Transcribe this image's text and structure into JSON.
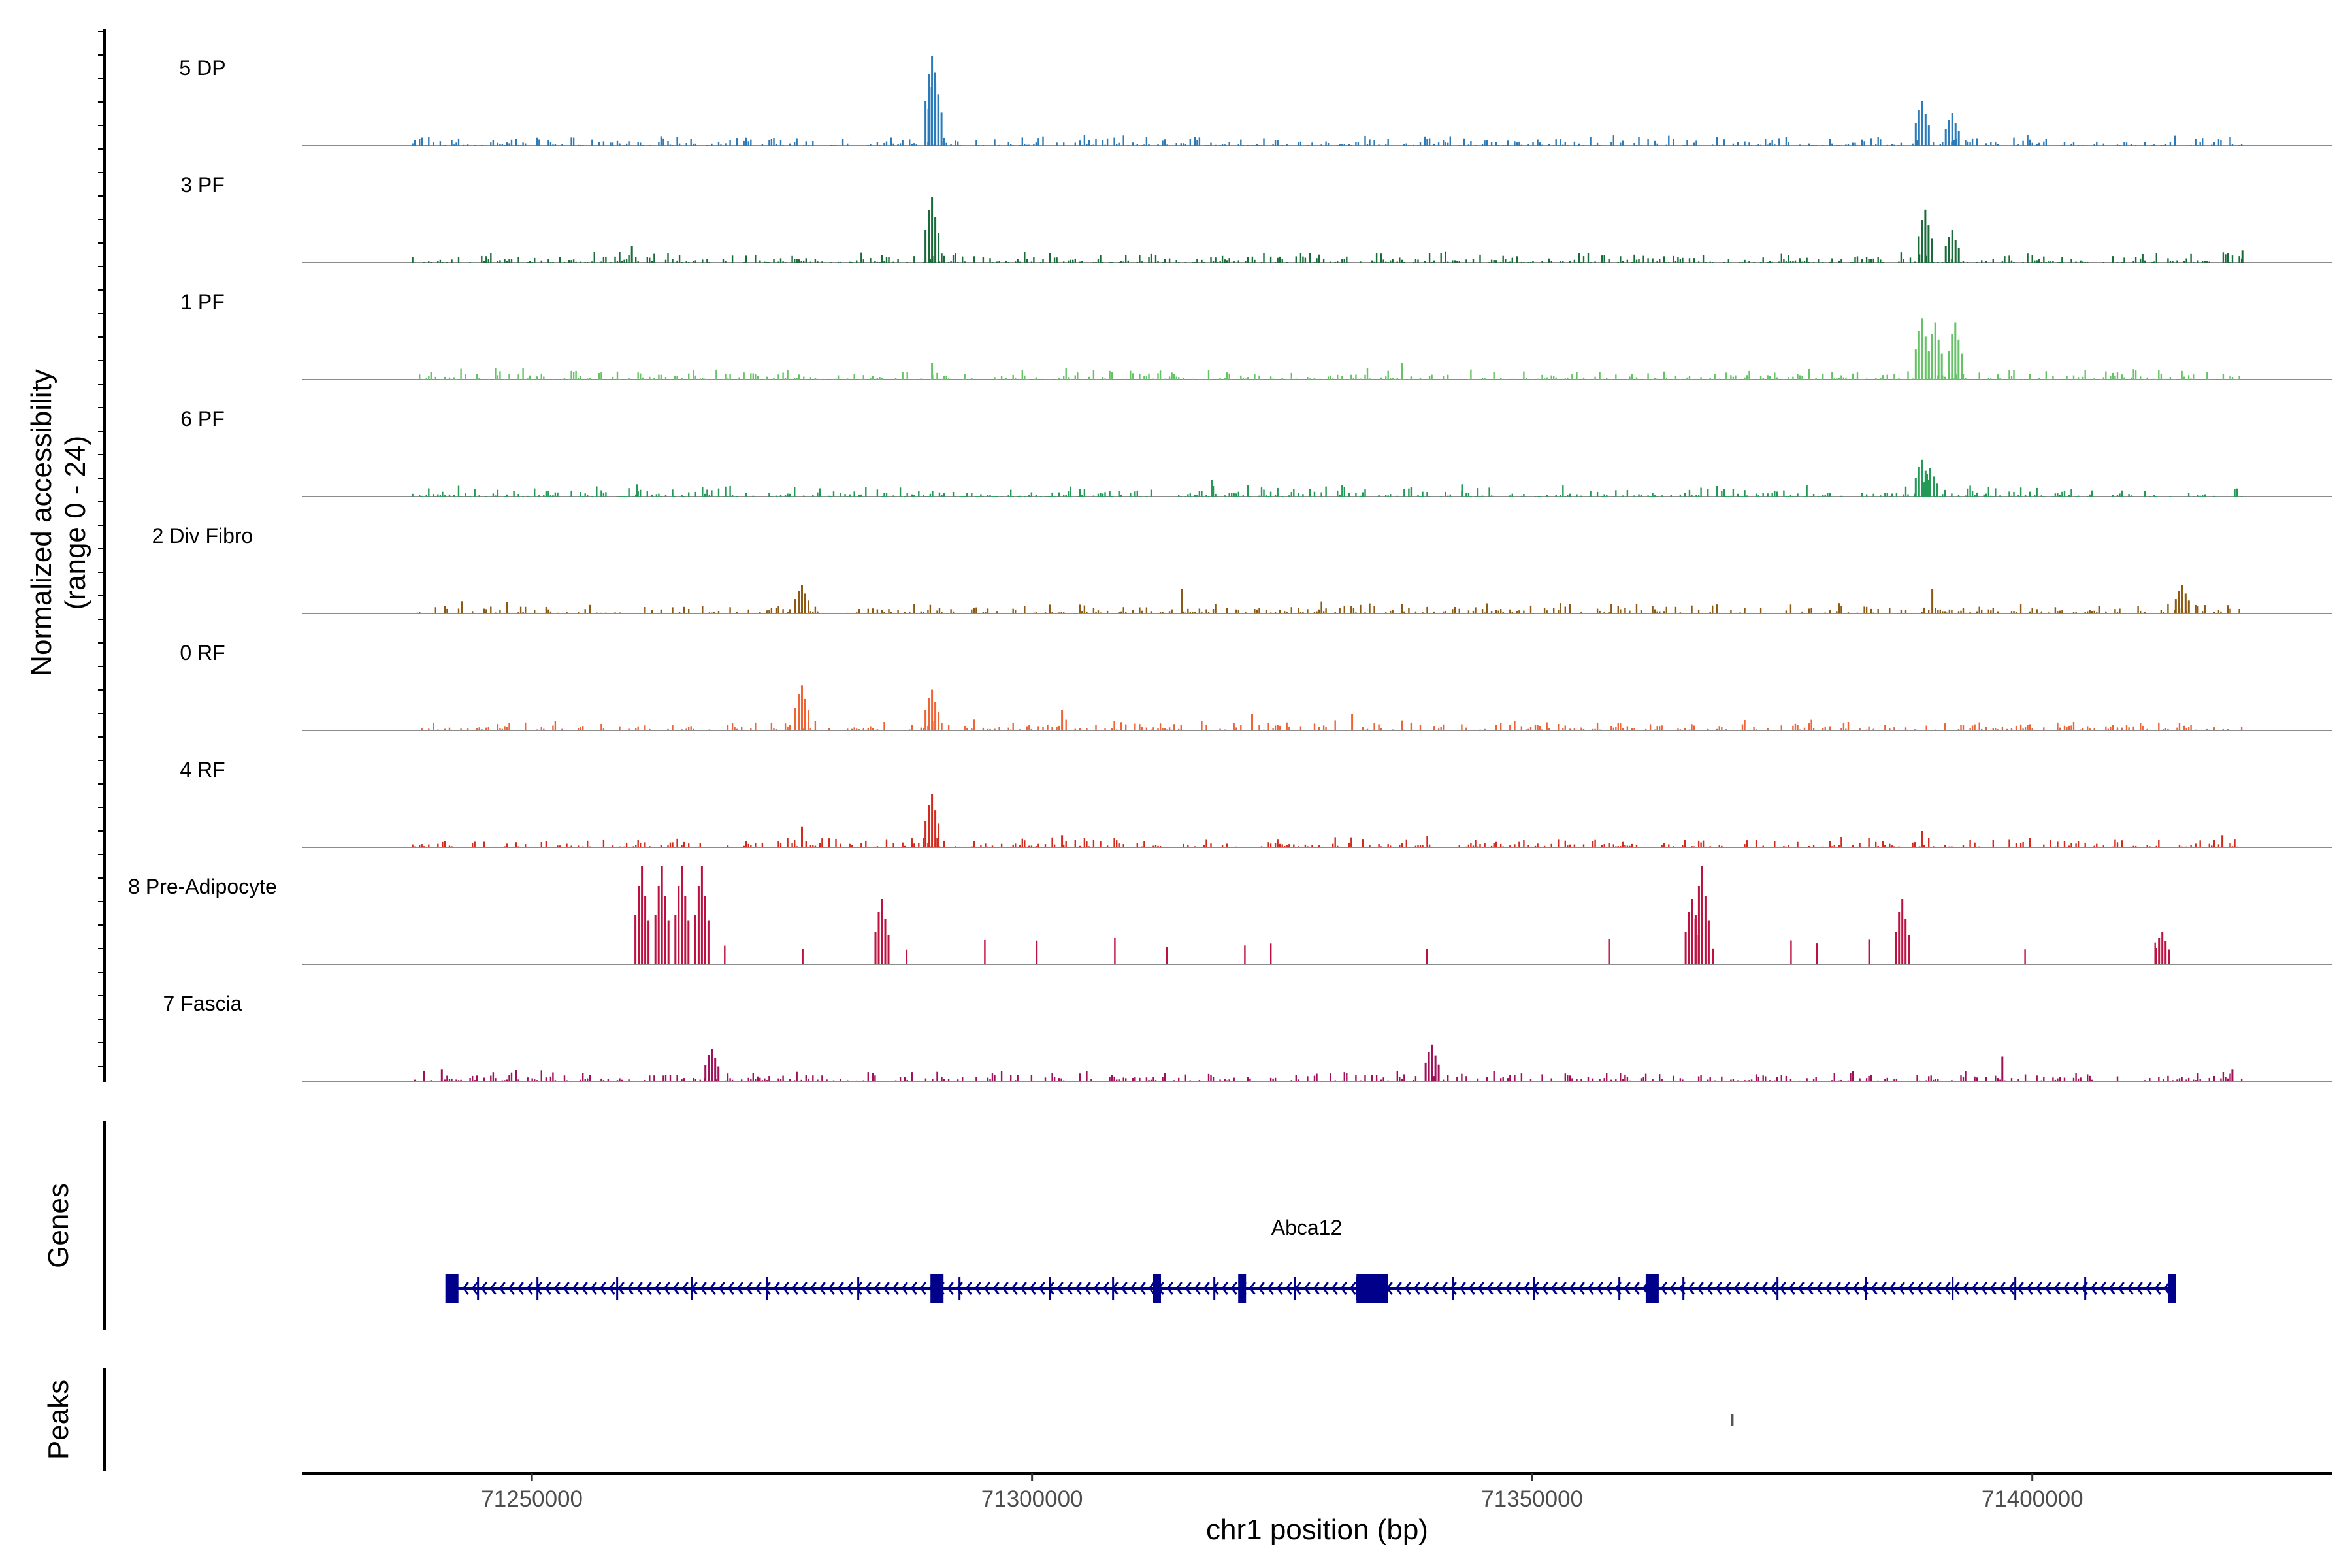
{
  "chart_data": {
    "type": "coverage-track",
    "y_axis_label": [
      "Normalized accessibility",
      "(range 0 - 24)"
    ],
    "y_range": [
      0,
      24
    ],
    "x_axis_label": "chr1 position (bp)",
    "x_range": [
      71227000,
      71430000
    ],
    "x_ticks": [
      71250000,
      71300000,
      71350000,
      71400000
    ],
    "x_tick_labels": [
      "71250000",
      "71300000",
      "71350000",
      "71400000"
    ],
    "data_extent": [
      71238000,
      71421000
    ],
    "tracks": [
      {
        "name": "5 DP",
        "color": "#2B7BBA",
        "peaks": [
          [
            71290000,
            22
          ],
          [
            71290300,
            18
          ],
          [
            71389000,
            11
          ],
          [
            71392000,
            8
          ],
          [
            71239000,
            2
          ]
        ]
      },
      {
        "name": "3 PF",
        "color": "#1A6B3A",
        "peaks": [
          [
            71290000,
            16
          ],
          [
            71389300,
            13
          ],
          [
            71392000,
            8
          ],
          [
            71260000,
            4
          ],
          [
            71421000,
            3
          ]
        ]
      },
      {
        "name": "1 PF",
        "color": "#66C266",
        "peaks": [
          [
            71389000,
            15
          ],
          [
            71390300,
            14
          ],
          [
            71392300,
            14
          ],
          [
            71290000,
            4
          ],
          [
            71337000,
            4
          ]
        ]
      },
      {
        "name": "6 PF",
        "color": "#229955",
        "peaks": [
          [
            71389000,
            9
          ],
          [
            71389800,
            7
          ],
          [
            71260500,
            3
          ],
          [
            71318000,
            4
          ],
          [
            71343000,
            3
          ]
        ]
      },
      {
        "name": "2 Div Fibro",
        "color": "#8C5A12",
        "peaks": [
          [
            71277000,
            7
          ],
          [
            71315000,
            6
          ],
          [
            71390000,
            6
          ],
          [
            71415000,
            7
          ],
          [
            71243000,
            3
          ]
        ]
      },
      {
        "name": "0 RF",
        "color": "#F06434",
        "peaks": [
          [
            71277000,
            11
          ],
          [
            71290000,
            10
          ],
          [
            71303000,
            5
          ],
          [
            71322000,
            4
          ],
          [
            71332000,
            4
          ]
        ]
      },
      {
        "name": "4 RF",
        "color": "#D42A1E",
        "peaks": [
          [
            71290000,
            13
          ],
          [
            71277000,
            5
          ],
          [
            71303000,
            3
          ],
          [
            71389000,
            4
          ],
          [
            71419000,
            3
          ]
        ]
      },
      {
        "name": "8 Pre-Adipocyte",
        "color": "#BE1140",
        "peaks": [
          [
            71261000,
            24
          ],
          [
            71263000,
            24
          ],
          [
            71265000,
            24
          ],
          [
            71267000,
            24
          ],
          [
            71285000,
            16
          ],
          [
            71367000,
            24
          ],
          [
            71366000,
            16
          ],
          [
            71387000,
            16
          ],
          [
            71413000,
            8
          ]
        ]
      },
      {
        "name": "7 Fascia",
        "color": "#A0105A",
        "peaks": [
          [
            71268000,
            8
          ],
          [
            71340000,
            9
          ],
          [
            71397000,
            6
          ],
          [
            71241000,
            3
          ],
          [
            71420000,
            3
          ]
        ]
      }
    ],
    "genes_track": {
      "label": "Genes",
      "gene": "Abca12",
      "strand": "-",
      "start": 71242000,
      "end": 71414000,
      "color": "#00008B",
      "exons": [
        71242000,
        71290500,
        71312500,
        71321000,
        71334000,
        71362000,
        71414000
      ]
    },
    "peaks_track": {
      "label": "Peaks",
      "regions": [
        71370000
      ]
    }
  }
}
